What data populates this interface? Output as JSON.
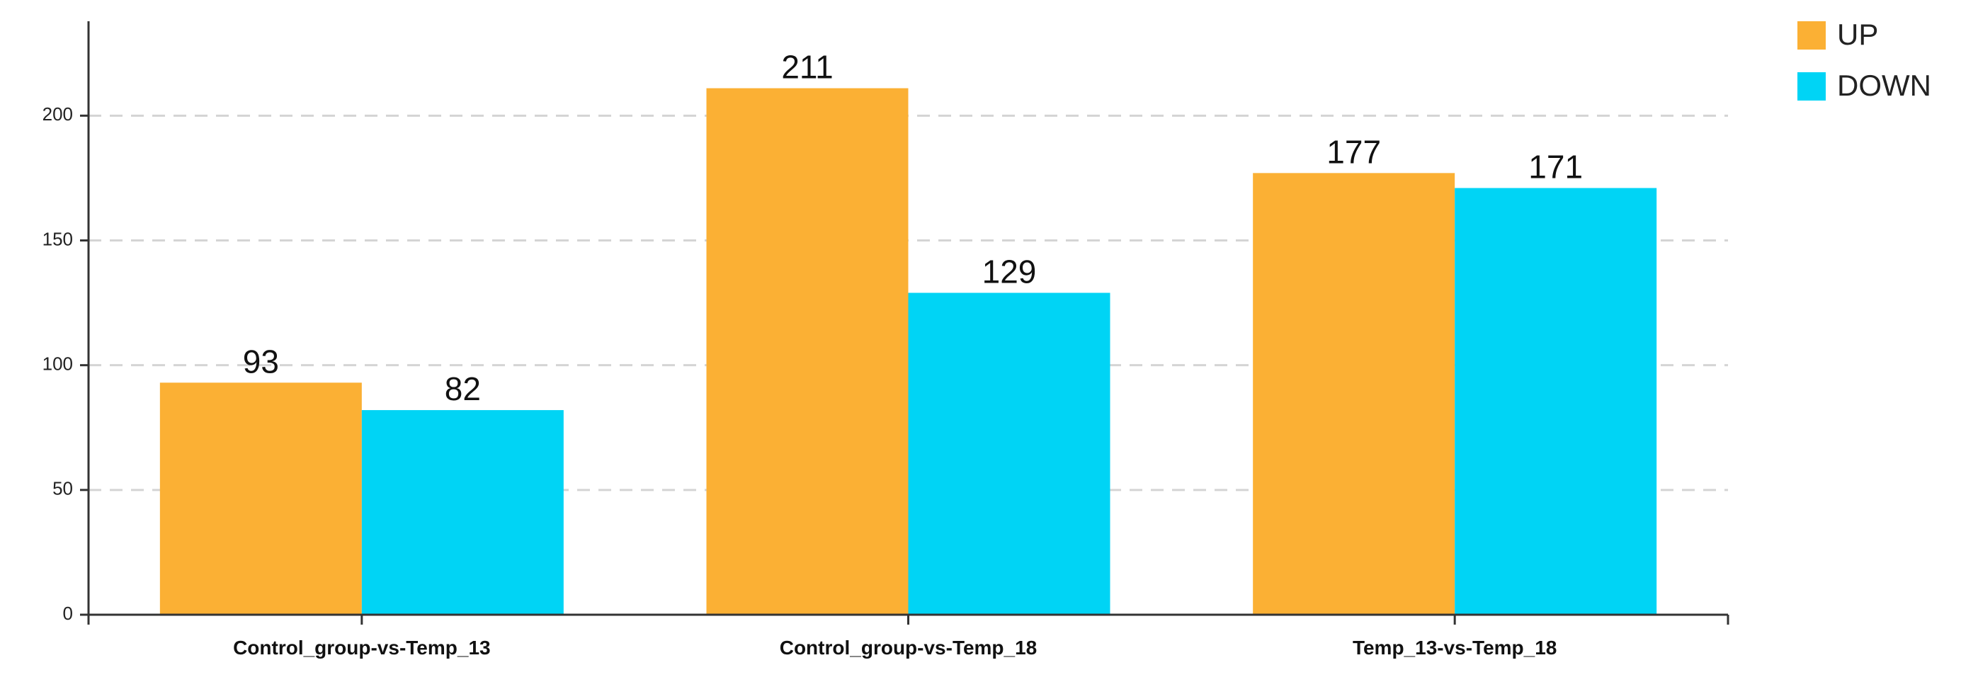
{
  "chart_data": {
    "type": "bar",
    "title": "",
    "xlabel": "",
    "ylabel": "",
    "categories": [
      "Control_group-vs-Temp_13",
      "Control_group-vs-Temp_18",
      "Temp_13-vs-Temp_18"
    ],
    "series": [
      {
        "name": "UP",
        "color": "#FBB034",
        "values": [
          93,
          211,
          177
        ]
      },
      {
        "name": "DOWN",
        "color": "#00D4F5",
        "values": [
          82,
          129,
          171
        ]
      }
    ],
    "ylim": [
      0,
      235
    ],
    "yticks": [
      0,
      50,
      100,
      150,
      200
    ],
    "grid": true,
    "legend_position": "top-right"
  }
}
